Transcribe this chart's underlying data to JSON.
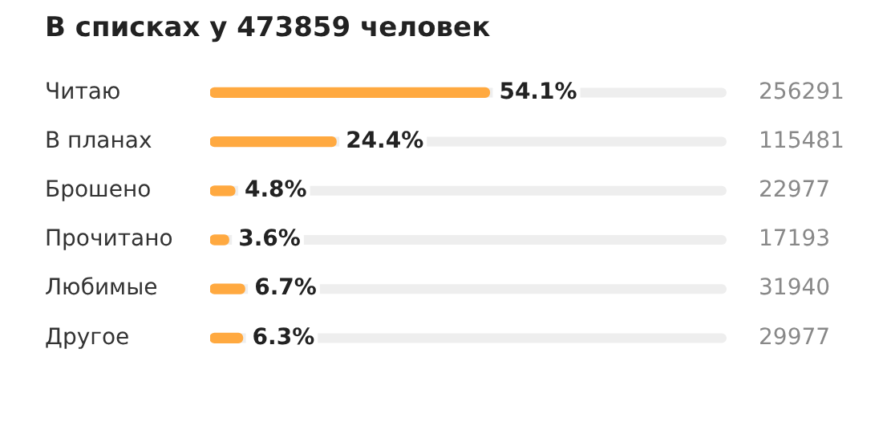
{
  "chart_data": {
    "type": "bar",
    "orientation": "horizontal",
    "title": "В списках у 473859 человек",
    "categories": [
      "Читаю",
      "В планах",
      "Брошено",
      "Прочитано",
      "Любимые",
      "Другое"
    ],
    "values": [
      54.1,
      24.4,
      4.8,
      3.6,
      6.7,
      6.3
    ],
    "color": "#ffa940",
    "value_labels": [
      "54.1%",
      "24.4%",
      "4.8%",
      "3.6%",
      "6.7%",
      "6.3%"
    ],
    "xlim": [
      0,
      100
    ],
    "tick_labels": "y",
    "grid": false,
    "legend": false,
    "annotations": [
      "256291",
      "115481",
      "22977",
      "17193",
      "31940",
      "29977"
    ]
  }
}
